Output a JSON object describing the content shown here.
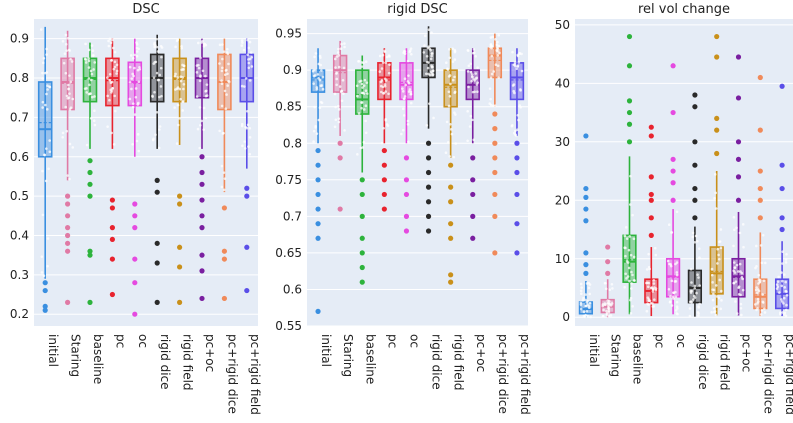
{
  "chart_data": [
    {
      "type": "box",
      "title": "DSC",
      "categories": [
        "initial",
        "Staring",
        "baseline",
        "pc",
        "oc",
        "rigid dice",
        "rigid field",
        "pc+oc",
        "pc+rigid dice",
        "pc+rigid field"
      ],
      "ylim": [
        0.17,
        0.95
      ],
      "yticks": [
        0.2,
        0.3,
        0.4,
        0.5,
        0.6,
        0.7,
        0.8,
        0.9
      ],
      "grid": true,
      "boxes": [
        {
          "min": 0.29,
          "q1": 0.6,
          "median": 0.67,
          "q3": 0.79,
          "max": 0.93,
          "outliers": [
            0.28,
            0.26,
            0.22,
            0.21
          ]
        },
        {
          "min": 0.54,
          "q1": 0.72,
          "median": 0.79,
          "q3": 0.85,
          "max": 0.92,
          "outliers": [
            0.5,
            0.48,
            0.45,
            0.42,
            0.4,
            0.38,
            0.36,
            0.23
          ]
        },
        {
          "min": 0.62,
          "q1": 0.74,
          "median": 0.8,
          "q3": 0.85,
          "max": 0.89,
          "outliers": [
            0.59,
            0.56,
            0.53,
            0.5,
            0.36,
            0.35,
            0.23
          ]
        },
        {
          "min": 0.62,
          "q1": 0.73,
          "median": 0.8,
          "q3": 0.85,
          "max": 0.9,
          "outliers": [
            0.49,
            0.47,
            0.42,
            0.39,
            0.34,
            0.25
          ]
        },
        {
          "min": 0.6,
          "q1": 0.73,
          "median": 0.79,
          "q3": 0.84,
          "max": 0.9,
          "outliers": [
            0.48,
            0.45,
            0.42,
            0.34,
            0.28,
            0.2
          ]
        },
        {
          "min": 0.62,
          "q1": 0.74,
          "median": 0.8,
          "q3": 0.86,
          "max": 0.91,
          "outliers": [
            0.54,
            0.51,
            0.38,
            0.33,
            0.23
          ]
        },
        {
          "min": 0.63,
          "q1": 0.74,
          "median": 0.8,
          "q3": 0.85,
          "max": 0.9,
          "outliers": [
            0.5,
            0.48,
            0.37,
            0.32,
            0.23
          ]
        },
        {
          "min": 0.62,
          "q1": 0.75,
          "median": 0.8,
          "q3": 0.85,
          "max": 0.9,
          "outliers": [
            0.6,
            0.56,
            0.53,
            0.49,
            0.45,
            0.42,
            0.35,
            0.31,
            0.24
          ]
        },
        {
          "min": 0.51,
          "q1": 0.72,
          "median": 0.79,
          "q3": 0.86,
          "max": 0.9,
          "outliers": [
            0.47,
            0.36,
            0.34,
            0.24
          ]
        },
        {
          "min": 0.57,
          "q1": 0.74,
          "median": 0.8,
          "q3": 0.86,
          "max": 0.9,
          "outliers": [
            0.52,
            0.5,
            0.37,
            0.26
          ]
        }
      ]
    },
    {
      "type": "box",
      "title": "rigid DSC",
      "categories": [
        "initial",
        "Staring",
        "baseline",
        "pc",
        "oc",
        "rigid dice",
        "rigid field",
        "pc+oc",
        "pc+rigid dice",
        "pc+rigid field"
      ],
      "ylim": [
        0.55,
        0.97
      ],
      "yticks": [
        0.55,
        0.6,
        0.65,
        0.7,
        0.75,
        0.8,
        0.85,
        0.9,
        0.95
      ],
      "grid": true,
      "boxes": [
        {
          "min": 0.8,
          "q1": 0.87,
          "median": 0.89,
          "q3": 0.9,
          "max": 0.93,
          "outliers": [
            0.79,
            0.77,
            0.75,
            0.73,
            0.71,
            0.69,
            0.67,
            0.57
          ]
        },
        {
          "min": 0.81,
          "q1": 0.87,
          "median": 0.9,
          "q3": 0.92,
          "max": 0.94,
          "outliers": [
            0.8,
            0.78,
            0.71
          ]
        },
        {
          "min": 0.76,
          "q1": 0.84,
          "median": 0.86,
          "q3": 0.9,
          "max": 0.92,
          "outliers": [
            0.75,
            0.73,
            0.7,
            0.67,
            0.65,
            0.63,
            0.61
          ]
        },
        {
          "min": 0.8,
          "q1": 0.86,
          "median": 0.89,
          "q3": 0.91,
          "max": 0.93,
          "outliers": [
            0.79,
            0.77,
            0.75,
            0.73,
            0.71
          ]
        },
        {
          "min": 0.8,
          "q1": 0.86,
          "median": 0.88,
          "q3": 0.91,
          "max": 0.93,
          "outliers": [
            0.78,
            0.75,
            0.73,
            0.7,
            0.68
          ]
        },
        {
          "min": 0.82,
          "q1": 0.89,
          "median": 0.91,
          "q3": 0.93,
          "max": 0.96,
          "outliers": [
            0.8,
            0.78,
            0.76,
            0.74,
            0.72,
            0.7,
            0.68
          ]
        },
        {
          "min": 0.78,
          "q1": 0.85,
          "median": 0.88,
          "q3": 0.9,
          "max": 0.93,
          "outliers": [
            0.77,
            0.74,
            0.72,
            0.69,
            0.67,
            0.62,
            0.61
          ]
        },
        {
          "min": 0.8,
          "q1": 0.86,
          "median": 0.88,
          "q3": 0.9,
          "max": 0.93,
          "outliers": [
            0.78,
            0.75,
            0.73,
            0.7,
            0.67
          ]
        },
        {
          "min": 0.85,
          "q1": 0.89,
          "median": 0.92,
          "q3": 0.93,
          "max": 0.95,
          "outliers": [
            0.84,
            0.82,
            0.8,
            0.78,
            0.76,
            0.73,
            0.7,
            0.65
          ]
        },
        {
          "min": 0.81,
          "q1": 0.86,
          "median": 0.89,
          "q3": 0.91,
          "max": 0.93,
          "outliers": [
            0.8,
            0.78,
            0.76,
            0.73,
            0.69,
            0.65
          ]
        }
      ]
    },
    {
      "type": "box",
      "title": "rel vol change",
      "categories": [
        "initial",
        "Staring",
        "baseline",
        "pc",
        "oc",
        "rigid dice",
        "rigid field",
        "pc+oc",
        "pc+rigid dice",
        "pc+rigid field"
      ],
      "ylim": [
        -1.5,
        51
      ],
      "yticks": [
        0,
        10,
        20,
        30,
        40,
        50
      ],
      "grid": true,
      "boxes": [
        {
          "min": 0,
          "q1": 0.6,
          "median": 1.4,
          "q3": 2.6,
          "max": 6.2,
          "outliers": [
            7.5,
            9,
            11,
            16.5,
            18.5,
            20.5,
            22,
            31
          ]
        },
        {
          "min": 0,
          "q1": 0.8,
          "median": 1.8,
          "q3": 3,
          "max": 6.5,
          "outliers": [
            7.5,
            9.5,
            12
          ]
        },
        {
          "min": 0.5,
          "q1": 6,
          "median": 9.5,
          "q3": 14,
          "max": 27.5,
          "outliers": [
            30,
            33,
            35,
            37,
            43,
            48
          ]
        },
        {
          "min": 0.2,
          "q1": 2.5,
          "median": 4.5,
          "q3": 6.5,
          "max": 12,
          "outliers": [
            14,
            17,
            20,
            21,
            24,
            31,
            32.5
          ]
        },
        {
          "min": 0.5,
          "q1": 3.5,
          "median": 7,
          "q3": 10,
          "max": 18.5,
          "outliers": [
            20,
            23,
            25,
            27,
            35,
            43
          ]
        },
        {
          "min": 0.1,
          "q1": 2.5,
          "median": 5,
          "q3": 8,
          "max": 15.5,
          "outliers": [
            17,
            20,
            22,
            26,
            30,
            36,
            38
          ]
        },
        {
          "min": 0.3,
          "q1": 4,
          "median": 7.5,
          "q3": 12,
          "max": 25,
          "outliers": [
            28,
            32,
            34,
            44.5,
            48
          ]
        },
        {
          "min": 0.3,
          "q1": 3.5,
          "median": 7,
          "q3": 10,
          "max": 18,
          "outliers": [
            20,
            24,
            27,
            30,
            37.5,
            44.5
          ]
        },
        {
          "min": 0.2,
          "q1": 1.5,
          "median": 3.5,
          "q3": 6.5,
          "max": 14.5,
          "outliers": [
            17,
            20,
            22,
            25,
            32,
            41
          ]
        },
        {
          "min": 0.2,
          "q1": 1.5,
          "median": 4,
          "q3": 6.5,
          "max": 13,
          "outliers": [
            15,
            17,
            22,
            26,
            39.5
          ]
        }
      ]
    }
  ],
  "colors": [
    "#3a8fe0",
    "#e07aa5",
    "#2db33c",
    "#e8232e",
    "#e54ae0",
    "#2a2a2a",
    "#c9901a",
    "#7a1fa0",
    "#f08a5a",
    "#5a4ee8"
  ]
}
